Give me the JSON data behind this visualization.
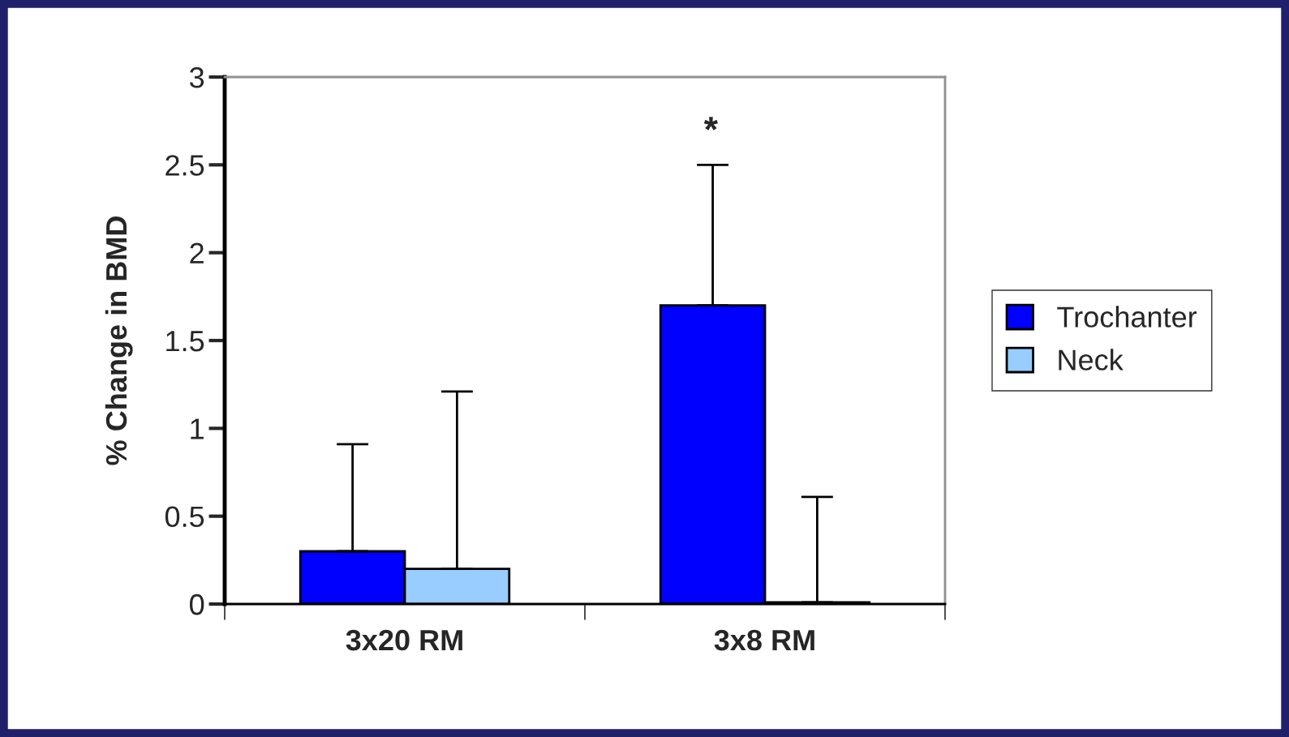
{
  "chart_data": {
    "type": "bar",
    "ylabel": "% Change in BMD",
    "categories": [
      "3x20 RM",
      "3x8 RM"
    ],
    "series": [
      {
        "name": "Trochanter",
        "color": "#0000ff",
        "values": [
          0.3,
          1.7
        ],
        "errors": [
          [
            0.3,
            0.91
          ],
          [
            1.7,
            2.5
          ]
        ]
      },
      {
        "name": "Neck",
        "color": "#99ccff",
        "values": [
          0.2,
          0.01
        ],
        "errors": [
          [
            0.2,
            1.21
          ],
          [
            0.01,
            0.61
          ]
        ]
      }
    ],
    "ylim": [
      0,
      3
    ],
    "yticks": [
      0,
      0.5,
      1,
      1.5,
      2,
      2.5,
      3
    ],
    "grid": false,
    "legend": "right",
    "annotations": [
      "*"
    ]
  }
}
